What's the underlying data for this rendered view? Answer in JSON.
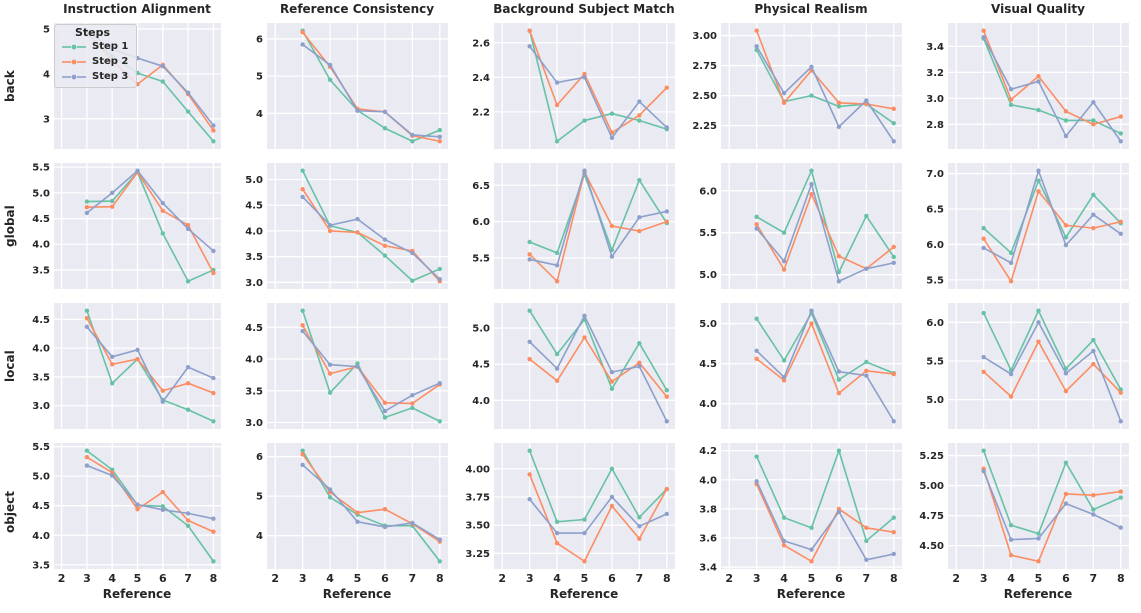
{
  "figure": {
    "background_color": "#ffffff",
    "axes_background": "#eaeaf2",
    "grid_color": "#ffffff",
    "text_color": "#262626",
    "legend": {
      "title": "Steps",
      "entries": [
        {
          "label": "Step 1",
          "color": "#66c2a5"
        },
        {
          "label": "Step 2",
          "color": "#fc8d62"
        },
        {
          "label": "Step 3",
          "color": "#8da0cb"
        }
      ]
    }
  },
  "chart_data": {
    "type": "line",
    "x": [
      3,
      4,
      5,
      6,
      7,
      8
    ],
    "x_ticks": [
      "2",
      "3",
      "4",
      "5",
      "6",
      "7",
      "8"
    ],
    "xlim": [
      1.7,
      8.3
    ],
    "xlabel": "Reference",
    "grid": true,
    "legend_position": "upper-left of first subplot",
    "col_titles": [
      "Instruction Alignment",
      "Reference Consistency",
      "Background Subject Match",
      "Physical Realism",
      "Visual Quality"
    ],
    "row_labels": [
      "back",
      "global",
      "local",
      "object"
    ],
    "series_names": [
      "Step 1",
      "Step 2",
      "Step 3"
    ],
    "series_colors": [
      "#66c2a5",
      "#fc8d62",
      "#8da0cb"
    ],
    "subplots": [
      {
        "row": "back",
        "col": "Instruction Alignment",
        "y_ticks": [
          "3",
          "4",
          "5"
        ],
        "series": [
          [
            4.88,
            4.4,
            4.02,
            3.83,
            3.16,
            2.5
          ],
          [
            4.92,
            4.3,
            3.77,
            4.2,
            3.55,
            2.74
          ],
          [
            4.96,
            4.55,
            4.35,
            4.17,
            3.58,
            2.85
          ]
        ]
      },
      {
        "row": "back",
        "col": "Reference Consistency",
        "y_ticks": [
          "4",
          "5",
          "6"
        ],
        "series": [
          [
            6.22,
            4.9,
            4.08,
            3.6,
            3.25,
            3.55
          ],
          [
            6.18,
            5.25,
            4.12,
            4.04,
            3.4,
            3.25
          ],
          [
            5.85,
            5.3,
            4.07,
            4.04,
            3.42,
            3.37
          ]
        ]
      },
      {
        "row": "back",
        "col": "Background Subject Match",
        "y_ticks": [
          "2.2",
          "2.4",
          "2.6"
        ],
        "series": [
          [
            2.67,
            2.03,
            2.15,
            2.19,
            2.15,
            2.1
          ],
          [
            2.67,
            2.24,
            2.42,
            2.08,
            2.18,
            2.34
          ],
          [
            2.58,
            2.37,
            2.4,
            2.05,
            2.26,
            2.11
          ]
        ]
      },
      {
        "row": "back",
        "col": "Physical Realism",
        "y_ticks": [
          "2.25",
          "2.50",
          "2.75",
          "3.00"
        ],
        "series": [
          [
            2.88,
            2.45,
            2.5,
            2.41,
            2.43,
            2.27
          ],
          [
            3.04,
            2.44,
            2.71,
            2.44,
            2.43,
            2.39
          ],
          [
            2.91,
            2.52,
            2.74,
            2.24,
            2.46,
            2.12
          ]
        ]
      },
      {
        "row": "back",
        "col": "Visual Quality",
        "y_ticks": [
          "2.8",
          "3.0",
          "3.2",
          "3.4"
        ],
        "series": [
          [
            3.46,
            2.95,
            2.91,
            2.83,
            2.83,
            2.73
          ],
          [
            3.52,
            2.99,
            3.17,
            2.9,
            2.8,
            2.86
          ],
          [
            3.47,
            3.07,
            3.13,
            2.71,
            2.97,
            2.67
          ]
        ]
      },
      {
        "row": "global",
        "col": "Instruction Alignment",
        "y_ticks": [
          "3.5",
          "4.0",
          "4.5",
          "5.0",
          "5.5"
        ],
        "series": [
          [
            4.83,
            4.84,
            5.4,
            4.21,
            3.28,
            3.5
          ],
          [
            4.72,
            4.73,
            5.4,
            4.65,
            4.37,
            3.44
          ],
          [
            4.61,
            5.0,
            5.43,
            4.8,
            4.3,
            3.87
          ]
        ]
      },
      {
        "row": "global",
        "col": "Reference Consistency",
        "y_ticks": [
          "3.0",
          "3.5",
          "4.0",
          "4.5",
          "5.0"
        ],
        "series": [
          [
            5.17,
            4.1,
            3.97,
            3.52,
            3.03,
            3.26
          ],
          [
            4.81,
            4.0,
            3.97,
            3.71,
            3.61,
            3.02
          ],
          [
            4.66,
            4.11,
            4.23,
            3.83,
            3.57,
            3.06
          ]
        ]
      },
      {
        "row": "global",
        "col": "Background Subject Match",
        "y_ticks": [
          "5.5",
          "6.0",
          "6.5"
        ],
        "series": [
          [
            5.72,
            5.57,
            6.65,
            5.61,
            6.57,
            5.98
          ],
          [
            5.55,
            5.18,
            6.68,
            5.94,
            5.87,
            6.0
          ],
          [
            5.48,
            5.4,
            6.7,
            5.52,
            6.06,
            6.14
          ]
        ]
      },
      {
        "row": "global",
        "col": "Physical Realism",
        "y_ticks": [
          "5.0",
          "5.5",
          "6.0"
        ],
        "series": [
          [
            5.69,
            5.5,
            6.24,
            5.03,
            5.7,
            5.21
          ],
          [
            5.6,
            5.06,
            5.96,
            5.22,
            5.07,
            5.33
          ],
          [
            5.55,
            5.16,
            6.08,
            4.92,
            5.07,
            5.14
          ]
        ]
      },
      {
        "row": "global",
        "col": "Visual Quality",
        "y_ticks": [
          "5.5",
          "6.0",
          "6.5",
          "7.0"
        ],
        "series": [
          [
            6.23,
            5.88,
            6.9,
            6.1,
            6.7,
            6.3
          ],
          [
            6.08,
            5.48,
            6.75,
            6.27,
            6.23,
            6.32
          ],
          [
            5.95,
            5.74,
            7.04,
            5.99,
            6.42,
            6.15
          ]
        ]
      },
      {
        "row": "local",
        "col": "Instruction Alignment",
        "y_ticks": [
          "3.0",
          "3.5",
          "4.0",
          "4.5"
        ],
        "series": [
          [
            4.65,
            3.39,
            3.81,
            3.1,
            2.93,
            2.73
          ],
          [
            4.52,
            3.72,
            3.81,
            3.26,
            3.39,
            3.22
          ],
          [
            4.37,
            3.85,
            3.97,
            3.07,
            3.67,
            3.48
          ]
        ]
      },
      {
        "row": "local",
        "col": "Reference Consistency",
        "y_ticks": [
          "3.0",
          "3.5",
          "4.0",
          "4.5"
        ],
        "series": [
          [
            4.76,
            3.47,
            3.93,
            3.08,
            3.23,
            3.02
          ],
          [
            4.53,
            3.77,
            3.88,
            3.31,
            3.3,
            3.6
          ],
          [
            4.44,
            3.91,
            3.88,
            3.18,
            3.43,
            3.62
          ]
        ]
      },
      {
        "row": "local",
        "col": "Background Subject Match",
        "y_ticks": [
          "4.0",
          "4.5",
          "5.0"
        ],
        "series": [
          [
            5.24,
            4.64,
            5.12,
            4.16,
            4.79,
            4.14
          ],
          [
            4.57,
            4.27,
            4.87,
            4.26,
            4.52,
            4.05
          ],
          [
            4.81,
            4.44,
            5.17,
            4.39,
            4.47,
            3.71
          ]
        ]
      },
      {
        "row": "local",
        "col": "Physical Realism",
        "y_ticks": [
          "4.0",
          "4.5",
          "5.0"
        ],
        "series": [
          [
            5.06,
            4.54,
            5.13,
            4.3,
            4.52,
            4.38
          ],
          [
            4.56,
            4.29,
            5.0,
            4.13,
            4.41,
            4.37
          ],
          [
            4.66,
            4.33,
            5.16,
            4.4,
            4.35,
            3.78
          ]
        ]
      },
      {
        "row": "local",
        "col": "Visual Quality",
        "y_ticks": [
          "5.0",
          "5.5",
          "6.0"
        ],
        "series": [
          [
            6.12,
            5.38,
            6.15,
            5.4,
            5.77,
            5.13
          ],
          [
            5.36,
            5.04,
            5.75,
            5.11,
            5.46,
            5.09
          ],
          [
            5.55,
            5.33,
            6.0,
            5.34,
            5.63,
            4.72
          ]
        ]
      },
      {
        "row": "object",
        "col": "Instruction Alignment",
        "y_ticks": [
          "3.5",
          "4.0",
          "4.5",
          "5.0",
          "5.5"
        ],
        "series": [
          [
            5.43,
            5.11,
            4.51,
            4.49,
            4.16,
            3.56
          ],
          [
            5.32,
            5.06,
            4.44,
            4.73,
            4.25,
            4.06
          ],
          [
            5.18,
            5.01,
            4.52,
            4.43,
            4.37,
            4.28
          ]
        ]
      },
      {
        "row": "object",
        "col": "Reference Consistency",
        "y_ticks": [
          "4",
          "5",
          "6"
        ],
        "series": [
          [
            6.15,
            4.97,
            4.53,
            4.25,
            4.25,
            3.35
          ],
          [
            6.06,
            5.1,
            4.58,
            4.67,
            4.3,
            3.85
          ],
          [
            5.79,
            5.17,
            4.35,
            4.22,
            4.32,
            3.9
          ]
        ]
      },
      {
        "row": "object",
        "col": "Background Subject Match",
        "y_ticks": [
          "3.25",
          "3.50",
          "3.75",
          "4.00"
        ],
        "series": [
          [
            4.16,
            3.53,
            3.55,
            4.0,
            3.57,
            3.82
          ],
          [
            3.95,
            3.34,
            3.18,
            3.67,
            3.38,
            3.82
          ],
          [
            3.73,
            3.43,
            3.43,
            3.75,
            3.49,
            3.6
          ]
        ]
      },
      {
        "row": "object",
        "col": "Physical Realism",
        "y_ticks": [
          "3.4",
          "3.6",
          "3.8",
          "4.0",
          "4.2"
        ],
        "series": [
          [
            4.16,
            3.74,
            3.67,
            4.2,
            3.58,
            3.74
          ],
          [
            3.97,
            3.55,
            3.44,
            3.8,
            3.67,
            3.64
          ],
          [
            3.99,
            3.58,
            3.52,
            3.78,
            3.45,
            3.49
          ]
        ]
      },
      {
        "row": "object",
        "col": "Visual Quality",
        "y_ticks": [
          "4.50",
          "4.75",
          "5.00",
          "5.25"
        ],
        "series": [
          [
            5.29,
            4.67,
            4.6,
            5.19,
            4.8,
            4.9
          ],
          [
            5.14,
            4.42,
            4.37,
            4.93,
            4.92,
            4.95
          ],
          [
            5.12,
            4.55,
            4.56,
            4.85,
            4.76,
            4.65
          ]
        ]
      }
    ]
  }
}
